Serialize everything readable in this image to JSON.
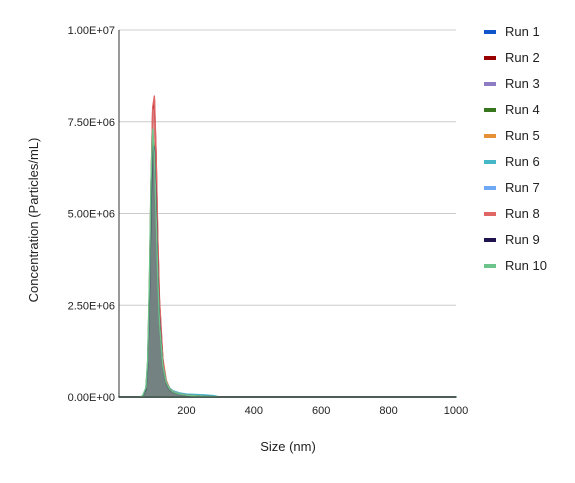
{
  "chart_data": {
    "type": "area",
    "title": "",
    "xlabel": "Size (nm)",
    "ylabel": "Concentration (Particles/mL)",
    "xlim": [
      0,
      1000
    ],
    "ylim": [
      0,
      10000000
    ],
    "x_ticks": [
      200,
      400,
      600,
      800,
      1000
    ],
    "x_tick_labels": [
      "200",
      "400",
      "600",
      "800",
      "1000"
    ],
    "y_ticks": [
      0,
      2500000,
      5000000,
      7500000,
      10000000
    ],
    "y_tick_labels": [
      "0.00E+00",
      "2.50E+06",
      "5.00E+06",
      "7.50E+06",
      "1.00E+07"
    ],
    "grid": "horizontal",
    "legend_position": "right",
    "x": [
      0,
      60,
      70,
      80,
      85,
      90,
      95,
      100,
      105,
      110,
      115,
      120,
      130,
      140,
      150,
      160,
      180,
      200,
      250,
      280,
      300,
      1000
    ],
    "series": [
      {
        "name": "Run 1",
        "color": "#1155cc",
        "values": [
          0,
          0,
          20000,
          200000,
          800000,
          2500000,
          5000000,
          6900000,
          6700000,
          5200000,
          3500000,
          2200000,
          900000,
          400000,
          220000,
          140000,
          80000,
          50000,
          20000,
          8000,
          0,
          0
        ]
      },
      {
        "name": "Run 2",
        "color": "#990000",
        "values": [
          0,
          0,
          25000,
          220000,
          900000,
          2800000,
          5700000,
          7800000,
          8100000,
          6600000,
          4300000,
          2600000,
          1000000,
          420000,
          220000,
          140000,
          80000,
          50000,
          20000,
          8000,
          0,
          0
        ]
      },
      {
        "name": "Run 3",
        "color": "#8e7cc3",
        "values": [
          0,
          0,
          20000,
          190000,
          780000,
          2450000,
          4950000,
          6850000,
          6700000,
          5300000,
          3600000,
          2250000,
          920000,
          410000,
          225000,
          145000,
          82000,
          50000,
          20000,
          8000,
          0,
          0
        ]
      },
      {
        "name": "Run 4",
        "color": "#38761d",
        "values": [
          0,
          0,
          18000,
          180000,
          760000,
          2400000,
          4900000,
          6800000,
          6650000,
          5200000,
          3500000,
          2150000,
          880000,
          400000,
          215000,
          140000,
          80000,
          50000,
          20000,
          8000,
          0,
          0
        ]
      },
      {
        "name": "Run 5",
        "color": "#e69138",
        "values": [
          0,
          0,
          15000,
          160000,
          700000,
          2300000,
          4800000,
          6800000,
          6900000,
          5600000,
          3900000,
          2500000,
          1050000,
          460000,
          240000,
          150000,
          85000,
          55000,
          22000,
          9000,
          0,
          0
        ]
      },
      {
        "name": "Run 6",
        "color": "#45b7c8",
        "values": [
          0,
          0,
          22000,
          210000,
          850000,
          2700000,
          5300000,
          7100000,
          6700000,
          5100000,
          3400000,
          2100000,
          880000,
          420000,
          250000,
          170000,
          110000,
          80000,
          60000,
          40000,
          0,
          0
        ]
      },
      {
        "name": "Run 7",
        "color": "#6fa8f5",
        "values": [
          0,
          0,
          20000,
          200000,
          820000,
          2600000,
          5100000,
          6950000,
          6800000,
          5300000,
          3550000,
          2200000,
          920000,
          420000,
          230000,
          150000,
          85000,
          55000,
          22000,
          9000,
          0,
          0
        ]
      },
      {
        "name": "Run 8",
        "color": "#e06666",
        "values": [
          0,
          0,
          25000,
          230000,
          950000,
          2900000,
          5800000,
          7900000,
          8200000,
          6700000,
          4400000,
          2700000,
          1050000,
          440000,
          230000,
          145000,
          82000,
          52000,
          21000,
          8000,
          0,
          0
        ]
      },
      {
        "name": "Run 9",
        "color": "#20124d",
        "values": [
          0,
          0,
          20000,
          200000,
          800000,
          2550000,
          5100000,
          6950000,
          6800000,
          5300000,
          3500000,
          2150000,
          850000,
          380000,
          200000,
          130000,
          75000,
          45000,
          18000,
          7000,
          0,
          0
        ]
      },
      {
        "name": "Run 10",
        "color": "#6dc48a",
        "values": [
          0,
          0,
          30000,
          260000,
          1000000,
          3100000,
          5900000,
          7300000,
          6600000,
          5000000,
          3300000,
          2050000,
          860000,
          400000,
          220000,
          140000,
          80000,
          50000,
          20000,
          8000,
          0,
          0
        ]
      }
    ]
  }
}
